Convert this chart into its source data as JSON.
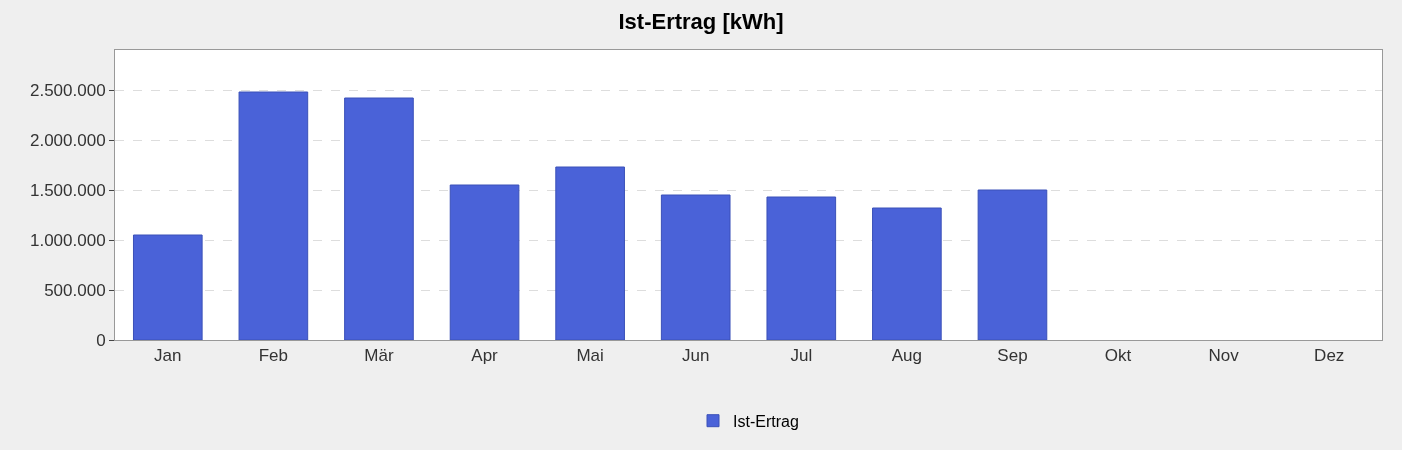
{
  "chart_data": {
    "type": "bar",
    "title": "Ist-Ertrag [kWh]",
    "categories": [
      "Jan",
      "Feb",
      "Mär",
      "Apr",
      "Mai",
      "Jun",
      "Jul",
      "Aug",
      "Sep",
      "Okt",
      "Nov",
      "Dez"
    ],
    "series": [
      {
        "name": "Ist-Ertrag",
        "color": "#4a62d8",
        "values": [
          1050000,
          2480000,
          2420000,
          1550000,
          1730000,
          1450000,
          1430000,
          1320000,
          1500000,
          null,
          null,
          null
        ]
      }
    ],
    "ylim": [
      0,
      2900000
    ],
    "yticks": [
      {
        "value": 0,
        "label": "0"
      },
      {
        "value": 500000,
        "label": "500.000"
      },
      {
        "value": 1000000,
        "label": "1.000.000"
      },
      {
        "value": 1500000,
        "label": "1.500.000"
      },
      {
        "value": 2000000,
        "label": "2.000.000"
      },
      {
        "value": 2500000,
        "label": "2.500.000"
      }
    ],
    "grid": "y",
    "legend": "bottom"
  }
}
